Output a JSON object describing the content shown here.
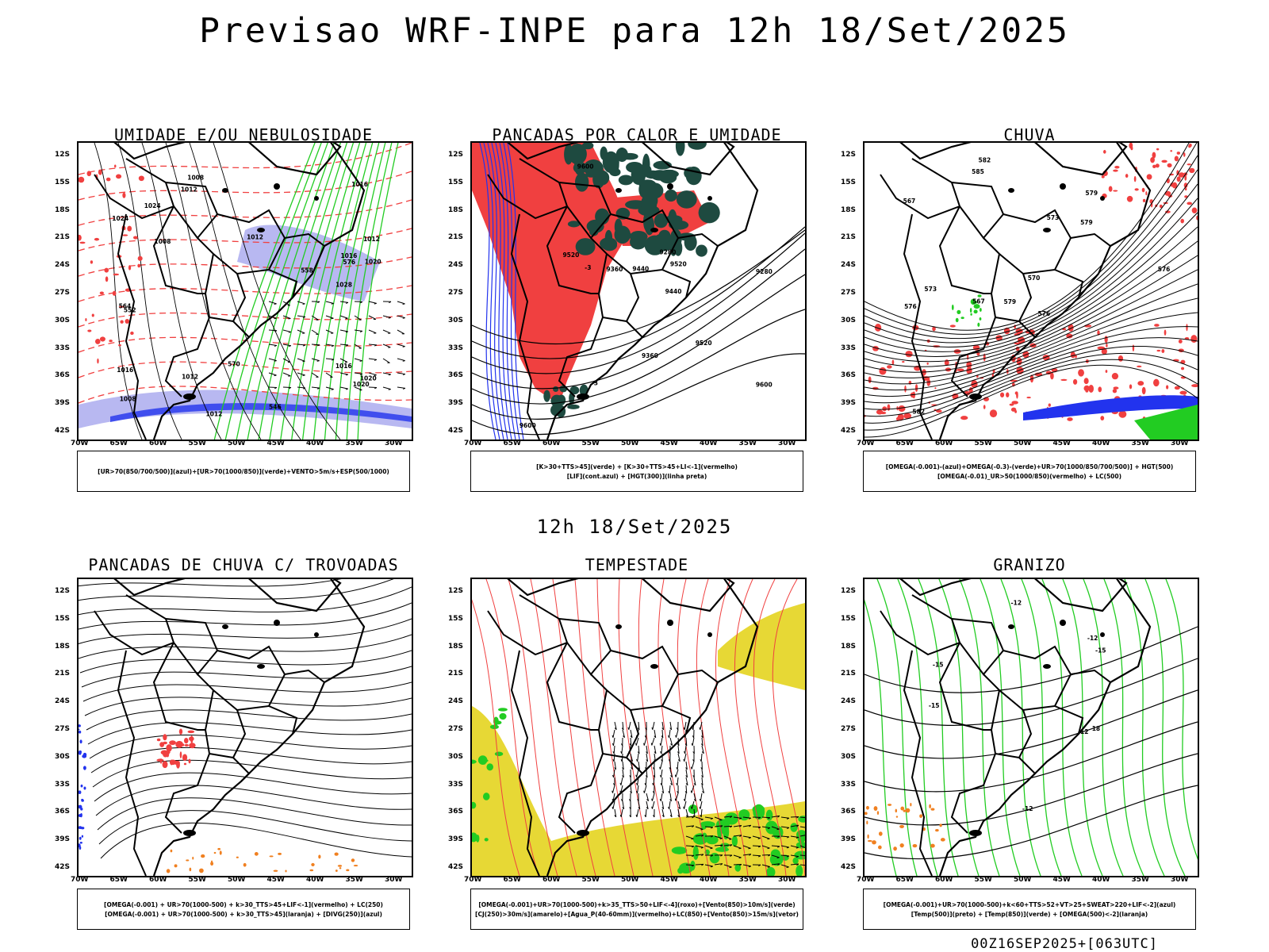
{
  "header": {
    "title": "Previsao WRF-INPE  para 12h 18/Set/2025",
    "mid_title": "12h 18/Set/2025",
    "footer": "00Z16SEP2025+[063UTC]"
  },
  "axes": {
    "lat_labels": [
      "12S",
      "15S",
      "18S",
      "21S",
      "24S",
      "27S",
      "30S",
      "33S",
      "36S",
      "39S",
      "42S"
    ],
    "lon_labels": [
      "70W",
      "65W",
      "60W",
      "55W",
      "50W",
      "45W",
      "40W",
      "35W",
      "30W"
    ]
  },
  "colors": {
    "red": "#f04040",
    "green": "#22cc22",
    "blue": "#2233ee",
    "lavender": "#b0b0f0",
    "darkgreen": "#1e4a40",
    "yellow": "#e6d62a",
    "orange": "#f08020",
    "purple": "#8040c0"
  },
  "panels": [
    {
      "title": "UMIDADE E/OU NEBULOSIDADE",
      "legend": [
        "[UR>70(850/700/500)](azul)+[UR>70(1000/850)](verde)+VENTO>5m/s+ESP(500/1000)"
      ],
      "labels": [
        "1016",
        "1012",
        "1020",
        "1012",
        "1008",
        "1008",
        "1016",
        "1012",
        "1016",
        "1008",
        "1020",
        "1024",
        "1028",
        "1012",
        "1016",
        "1024",
        "1020",
        "1012",
        "570",
        "576",
        "564",
        "552",
        "546",
        "558"
      ]
    },
    {
      "title": "PANCADAS POR CALOR E UMIDADE",
      "legend": [
        "[K>30+TTS>45](verde) + [K>30+TTS>45+LI<-1](vermelho)",
        "[LIF](cont.azul) + [HGT(300)](linha preta)"
      ],
      "labels": [
        "9600",
        "9600",
        "9600",
        "9520",
        "9520",
        "9520",
        "9440",
        "9440",
        "9360",
        "9360",
        "9280",
        "9280",
        "-3",
        "-3"
      ]
    },
    {
      "title": "CHUVA",
      "legend": [
        "[OMEGA(-0.001)-(azul)+OMEGA(-0.3)-(verde)+UR>70(1000/850/700/500)] + HGT(500)",
        "[OMEGA(-0.01)_UR>50(1000/850)(vermelho) + LC(500)"
      ],
      "labels": [
        "582",
        "579",
        "576",
        "579",
        "576",
        "573",
        "567",
        "579",
        "576",
        "573",
        "570",
        "582",
        "585",
        "567"
      ]
    },
    {
      "title": "PANCADAS DE CHUVA C/ TROVOADAS",
      "legend": [
        "[OMEGA(-0.001) + UR>70(1000-500) + k>30_TTS>45+LIF<-1](vermelho) + LC(250)",
        "[OMEGA(-0.001) + UR>70(1000-500) + k>30_TTS>45](laranja) + [DIVG(250)](azul)"
      ],
      "labels": []
    },
    {
      "title": "TEMPESTADE",
      "legend": [
        "[OMEGA(-0.001)+UR>70(1000-500)+k>35_TTS>50+LIF<-4](roxo)+[Vento(850)>10m/s](verde)",
        "[CJ(250)>30m/s](amarelo)+[Agua_P(40-60mm)](vermelho)+LC(850)+[Vento(850)>15m/s](vetor)"
      ],
      "labels": []
    },
    {
      "title": "GRANIZO",
      "legend": [
        "[OMEGA(-0.001)+UR>70(1000-500)+k<60+TTS>52+VT>25+SWEAT>220+LIF<-2](azul)",
        "[Temp(500)](preto) + [Temp(850)](verde) + [OMEGA(500)<-2](laranja)"
      ],
      "labels": [
        "-12",
        "-12",
        "-15",
        "-15",
        "18",
        "-15",
        "-12",
        "-12"
      ]
    }
  ]
}
